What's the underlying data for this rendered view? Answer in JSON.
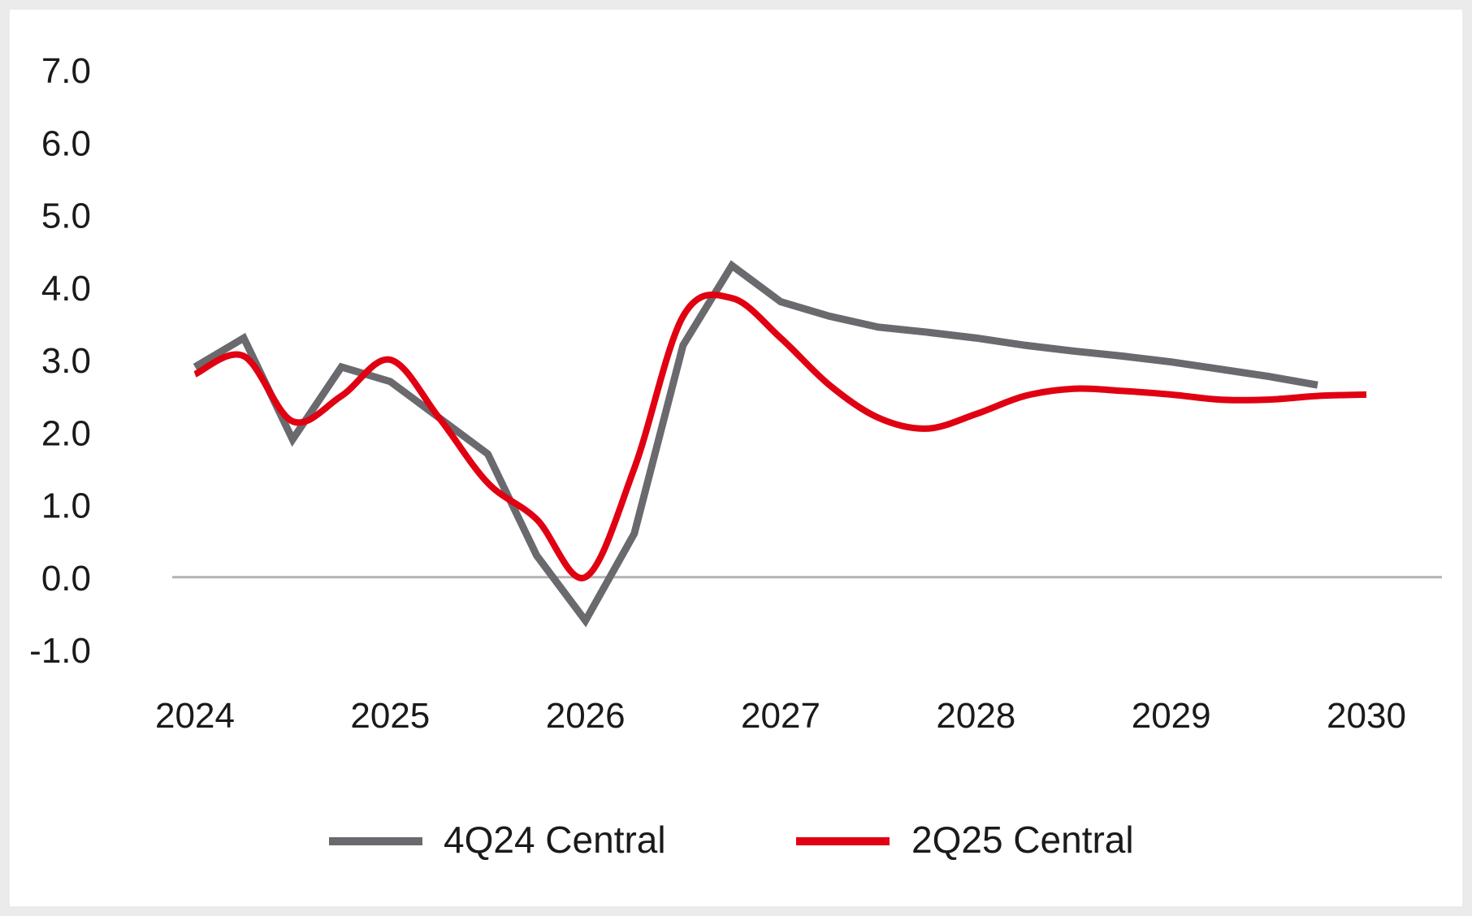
{
  "chart_data": {
    "type": "line",
    "title": "",
    "xlabel": "",
    "ylabel": "",
    "ylim": [
      -1.0,
      7.0
    ],
    "y_ticks": [
      "7.0",
      "6.0",
      "5.0",
      "4.0",
      "3.0",
      "2.0",
      "1.0",
      "0.0",
      "-1.0"
    ],
    "x_ticks": [
      "2024",
      "2025",
      "2026",
      "2027",
      "2028",
      "2029",
      "2030"
    ],
    "xlim": [
      2024,
      2030
    ],
    "zero_line": true,
    "grid": false,
    "legend_position": "bottom",
    "series": [
      {
        "name": "4Q24 Central",
        "color": "#6a6a6e",
        "smooth": false,
        "x": [
          2024.0,
          2024.25,
          2024.5,
          2024.75,
          2025.0,
          2025.25,
          2025.5,
          2025.75,
          2026.0,
          2026.25,
          2026.5,
          2026.75,
          2027.0,
          2027.25,
          2027.5,
          2027.75,
          2028.0,
          2028.25,
          2028.5,
          2028.75,
          2029.0,
          2029.25,
          2029.5,
          2029.75
        ],
        "values": [
          2.9,
          3.3,
          1.9,
          2.9,
          2.7,
          2.2,
          1.7,
          0.3,
          -0.6,
          0.6,
          3.2,
          4.3,
          3.8,
          3.6,
          3.45,
          3.38,
          3.3,
          3.2,
          3.12,
          3.05,
          2.97,
          2.87,
          2.77,
          2.65
        ]
      },
      {
        "name": "2Q25 Central",
        "color": "#e00012",
        "smooth": true,
        "x": [
          2024.0,
          2024.25,
          2024.5,
          2024.75,
          2025.0,
          2025.25,
          2025.5,
          2025.75,
          2026.0,
          2026.25,
          2026.5,
          2026.75,
          2027.0,
          2027.25,
          2027.5,
          2027.75,
          2028.0,
          2028.25,
          2028.5,
          2028.75,
          2029.0,
          2029.25,
          2029.5,
          2029.75,
          2030.0
        ],
        "values": [
          2.8,
          3.05,
          2.15,
          2.5,
          3.0,
          2.2,
          1.3,
          0.8,
          0.0,
          1.5,
          3.6,
          3.85,
          3.3,
          2.65,
          2.2,
          2.05,
          2.25,
          2.5,
          2.6,
          2.57,
          2.52,
          2.45,
          2.45,
          2.5,
          2.52
        ]
      }
    ]
  }
}
